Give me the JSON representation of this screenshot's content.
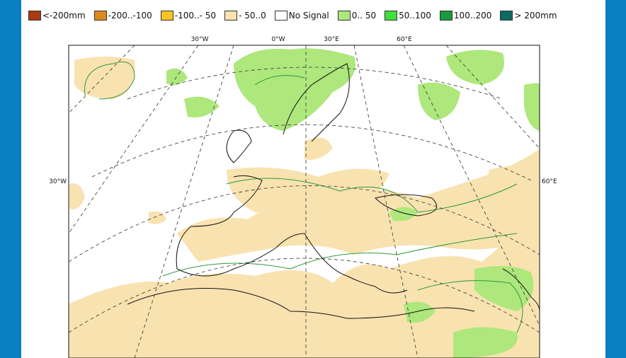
{
  "legend": [
    {
      "label": "<-200mm",
      "color": "#a83a14"
    },
    {
      "label": "-200..-100",
      "color": "#dd8a1c"
    },
    {
      "label": "-100..- 50",
      "color": "#f8c425"
    },
    {
      "label": "- 50..0",
      "color": "#f8e2b0"
    },
    {
      "label": "No Signal",
      "color": "#ffffff"
    },
    {
      "label": "0.. 50",
      "color": "#aee77c"
    },
    {
      "label": "50..100",
      "color": "#3ee23a"
    },
    {
      "label": "100..200",
      "color": "#1a9a3a"
    },
    {
      "label": "> 200mm",
      "color": "#0b6a64"
    }
  ],
  "graticule": {
    "top": [
      "30°W",
      "0°W",
      "30°E",
      "60°E"
    ],
    "left": "30°W",
    "right": "60°E"
  }
}
